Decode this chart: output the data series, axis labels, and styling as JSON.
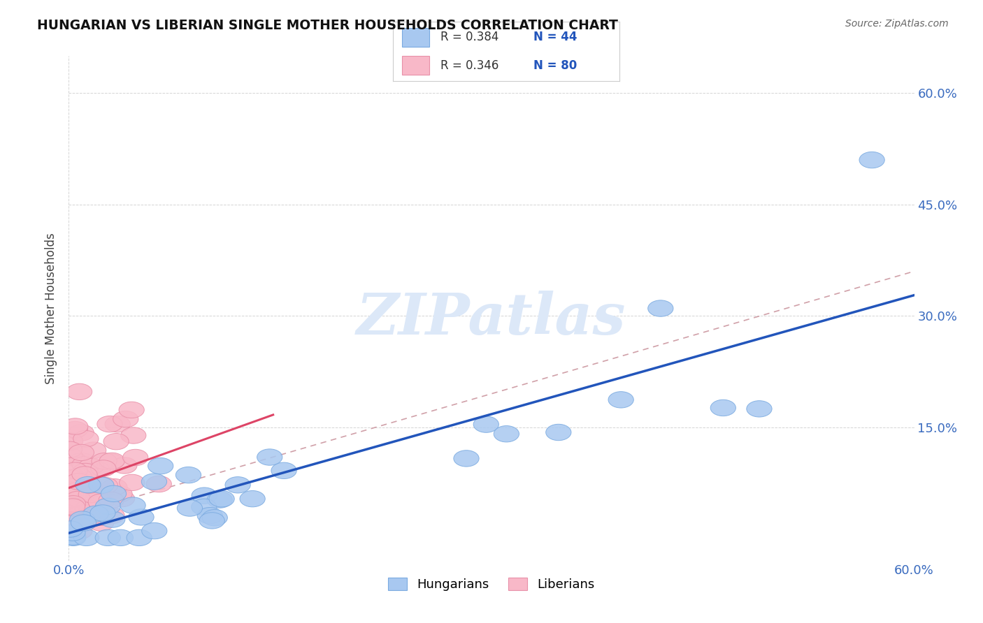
{
  "title": "HUNGARIAN VS LIBERIAN SINGLE MOTHER HOUSEHOLDS CORRELATION CHART",
  "source": "Source: ZipAtlas.com",
  "ylabel": "Single Mother Households",
  "xmin": 0.0,
  "xmax": 0.6,
  "ymin": -0.03,
  "ymax": 0.65,
  "ytick_vals": [
    0.15,
    0.3,
    0.45,
    0.6
  ],
  "ytick_labels": [
    "15.0%",
    "30.0%",
    "45.0%",
    "60.0%"
  ],
  "legend_r_hungarian": "R = 0.384",
  "legend_n_hungarian": "N = 44",
  "legend_r_liberian": "R = 0.346",
  "legend_n_liberian": "N = 80",
  "hungarian_color": "#a8c8f0",
  "hungarian_edge_color": "#7aaae0",
  "liberian_color": "#f8b8c8",
  "liberian_edge_color": "#e890a8",
  "hungarian_line_color": "#2255bb",
  "liberian_line_color": "#dd4466",
  "dashed_line_color": "#d0a0a8",
  "background_color": "#ffffff",
  "watermark_text": "ZIPatlas",
  "watermark_color": "#dce8f8",
  "grid_color": "#d5d5d5"
}
